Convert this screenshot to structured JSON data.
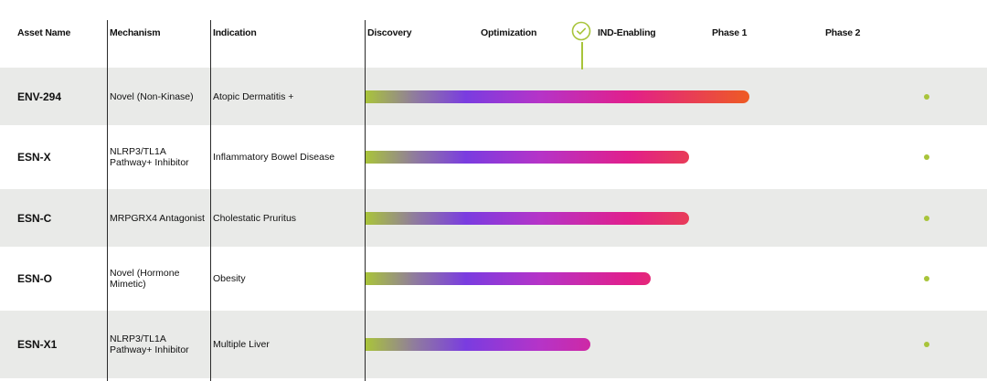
{
  "header": {
    "asset_name": "Asset Name",
    "mechanism": "Mechanism",
    "indication": "Indication",
    "stages": [
      "Discovery",
      "Optimization",
      "IND-Enabling",
      "Phase 1",
      "Phase 2"
    ],
    "current_stage_marker_icon": "check-circle-icon"
  },
  "rows": [
    {
      "asset": "ENV-294",
      "mechanism": "Novel (Non-Kinase)",
      "indication": "Atopic Dermatitis +",
      "progress_fraction": 0.7
    },
    {
      "asset": "ESN-X",
      "mechanism": "NLRP3/TL1A Pathway+ Inhibitor",
      "indication": "Inflammatory Bowel Disease",
      "progress_fraction": 0.59
    },
    {
      "asset": "ESN-C",
      "mechanism": "MRPGRX4 Antagonist",
      "indication": "Cholestatic Pruritus",
      "progress_fraction": 0.59
    },
    {
      "asset": "ESN-O",
      "mechanism": "Novel (Hormone Mimetic)",
      "indication": "Obesity",
      "progress_fraction": 0.52
    },
    {
      "asset": "ESN-X1",
      "mechanism": "NLRP3/TL1A Pathway+ Inhibitor",
      "indication": "Multiple Liver",
      "progress_fraction": 0.41
    }
  ],
  "colors": {
    "row_shade": "#e9eae8",
    "accent_green": "#a8c43a",
    "gradient": [
      "#a9c43a",
      "#7a3ce0",
      "#e21f8a",
      "#ee5b23"
    ]
  }
}
